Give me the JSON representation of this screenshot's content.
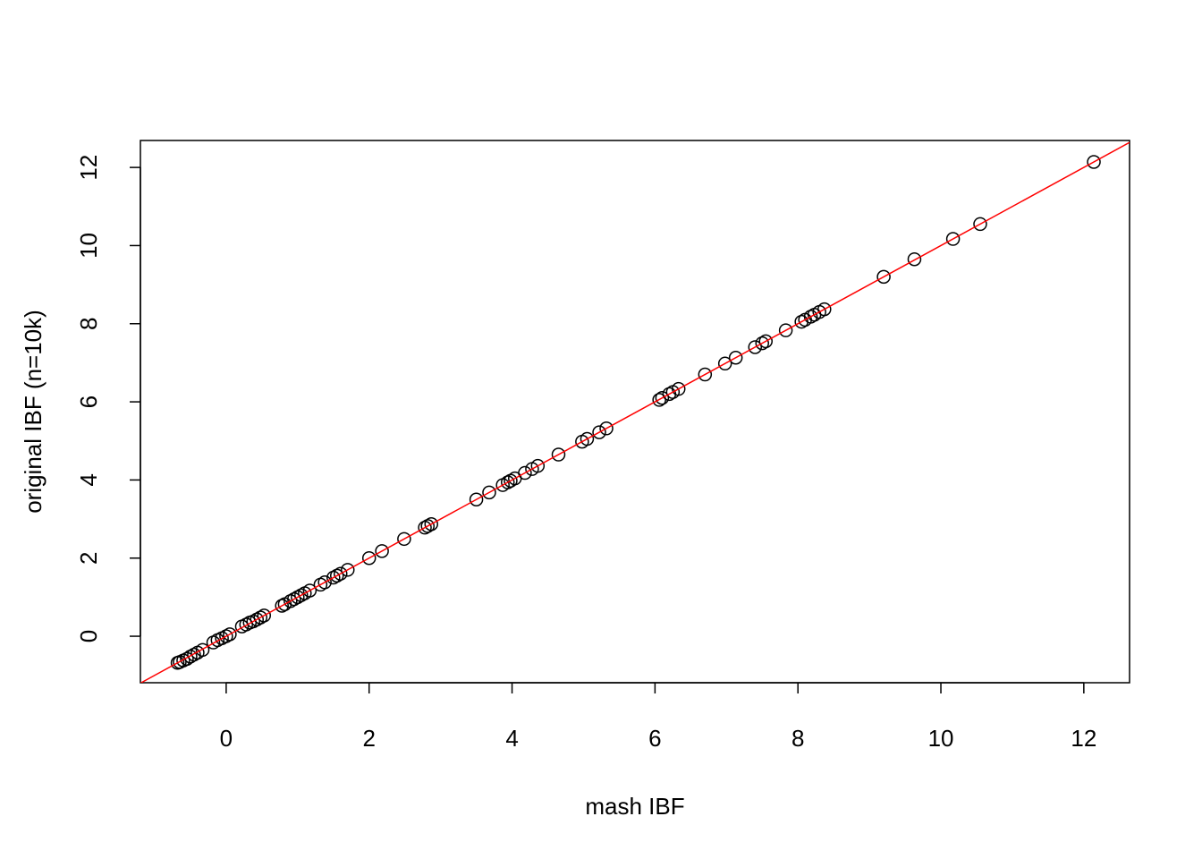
{
  "chart_data": {
    "type": "scatter",
    "x_label": "mash IBF",
    "y_label": "original IBF (n=10k)",
    "x": [
      -0.68,
      -0.65,
      -0.6,
      -0.55,
      -0.5,
      -0.45,
      -0.4,
      -0.33,
      -0.18,
      -0.12,
      -0.06,
      0.0,
      0.05,
      0.22,
      0.28,
      0.33,
      0.38,
      0.43,
      0.48,
      0.53,
      0.78,
      0.82,
      0.9,
      0.95,
      1.0,
      1.05,
      1.1,
      1.17,
      1.32,
      1.38,
      1.5,
      1.55,
      1.6,
      1.7,
      2.0,
      2.18,
      2.49,
      2.78,
      2.82,
      2.87,
      3.5,
      3.68,
      3.87,
      3.94,
      3.98,
      4.04,
      4.18,
      4.28,
      4.36,
      4.65,
      4.98,
      5.05,
      5.22,
      5.32,
      6.06,
      6.1,
      6.2,
      6.25,
      6.33,
      6.7,
      6.98,
      7.13,
      7.4,
      7.5,
      7.55,
      7.83,
      8.05,
      8.1,
      8.18,
      8.23,
      8.3,
      8.37,
      9.2,
      9.63,
      10.17,
      10.55,
      12.14
    ],
    "series": [
      {
        "color": "#000000",
        "values": [
          -0.68,
          -0.66,
          -0.62,
          -0.58,
          -0.52,
          -0.47,
          -0.42,
          -0.35,
          -0.16,
          -0.1,
          -0.05,
          0.0,
          0.05,
          0.25,
          0.3,
          0.35,
          0.38,
          0.43,
          0.48,
          0.53,
          0.78,
          0.82,
          0.9,
          0.95,
          1.0,
          1.05,
          1.1,
          1.17,
          1.32,
          1.38,
          1.5,
          1.55,
          1.6,
          1.7,
          2.0,
          2.18,
          2.49,
          2.78,
          2.82,
          2.87,
          3.5,
          3.68,
          3.87,
          3.94,
          3.98,
          4.04,
          4.18,
          4.28,
          4.36,
          4.65,
          4.98,
          5.05,
          5.22,
          5.32,
          6.05,
          6.1,
          6.2,
          6.25,
          6.33,
          6.7,
          6.98,
          7.13,
          7.4,
          7.5,
          7.55,
          7.83,
          8.05,
          8.1,
          8.18,
          8.23,
          8.3,
          8.37,
          9.2,
          9.65,
          10.17,
          10.55,
          12.14
        ]
      }
    ],
    "abline": {
      "intercept": 0,
      "slope": 1,
      "color": "#ff0000"
    },
    "xlim": [
      -1.2,
      12.64
    ],
    "ylim": [
      -1.19,
      12.69
    ],
    "xticks": [
      0,
      2,
      4,
      6,
      8,
      10,
      12
    ],
    "yticks": [
      0,
      2,
      4,
      6,
      8,
      10,
      12
    ],
    "grid": false
  }
}
